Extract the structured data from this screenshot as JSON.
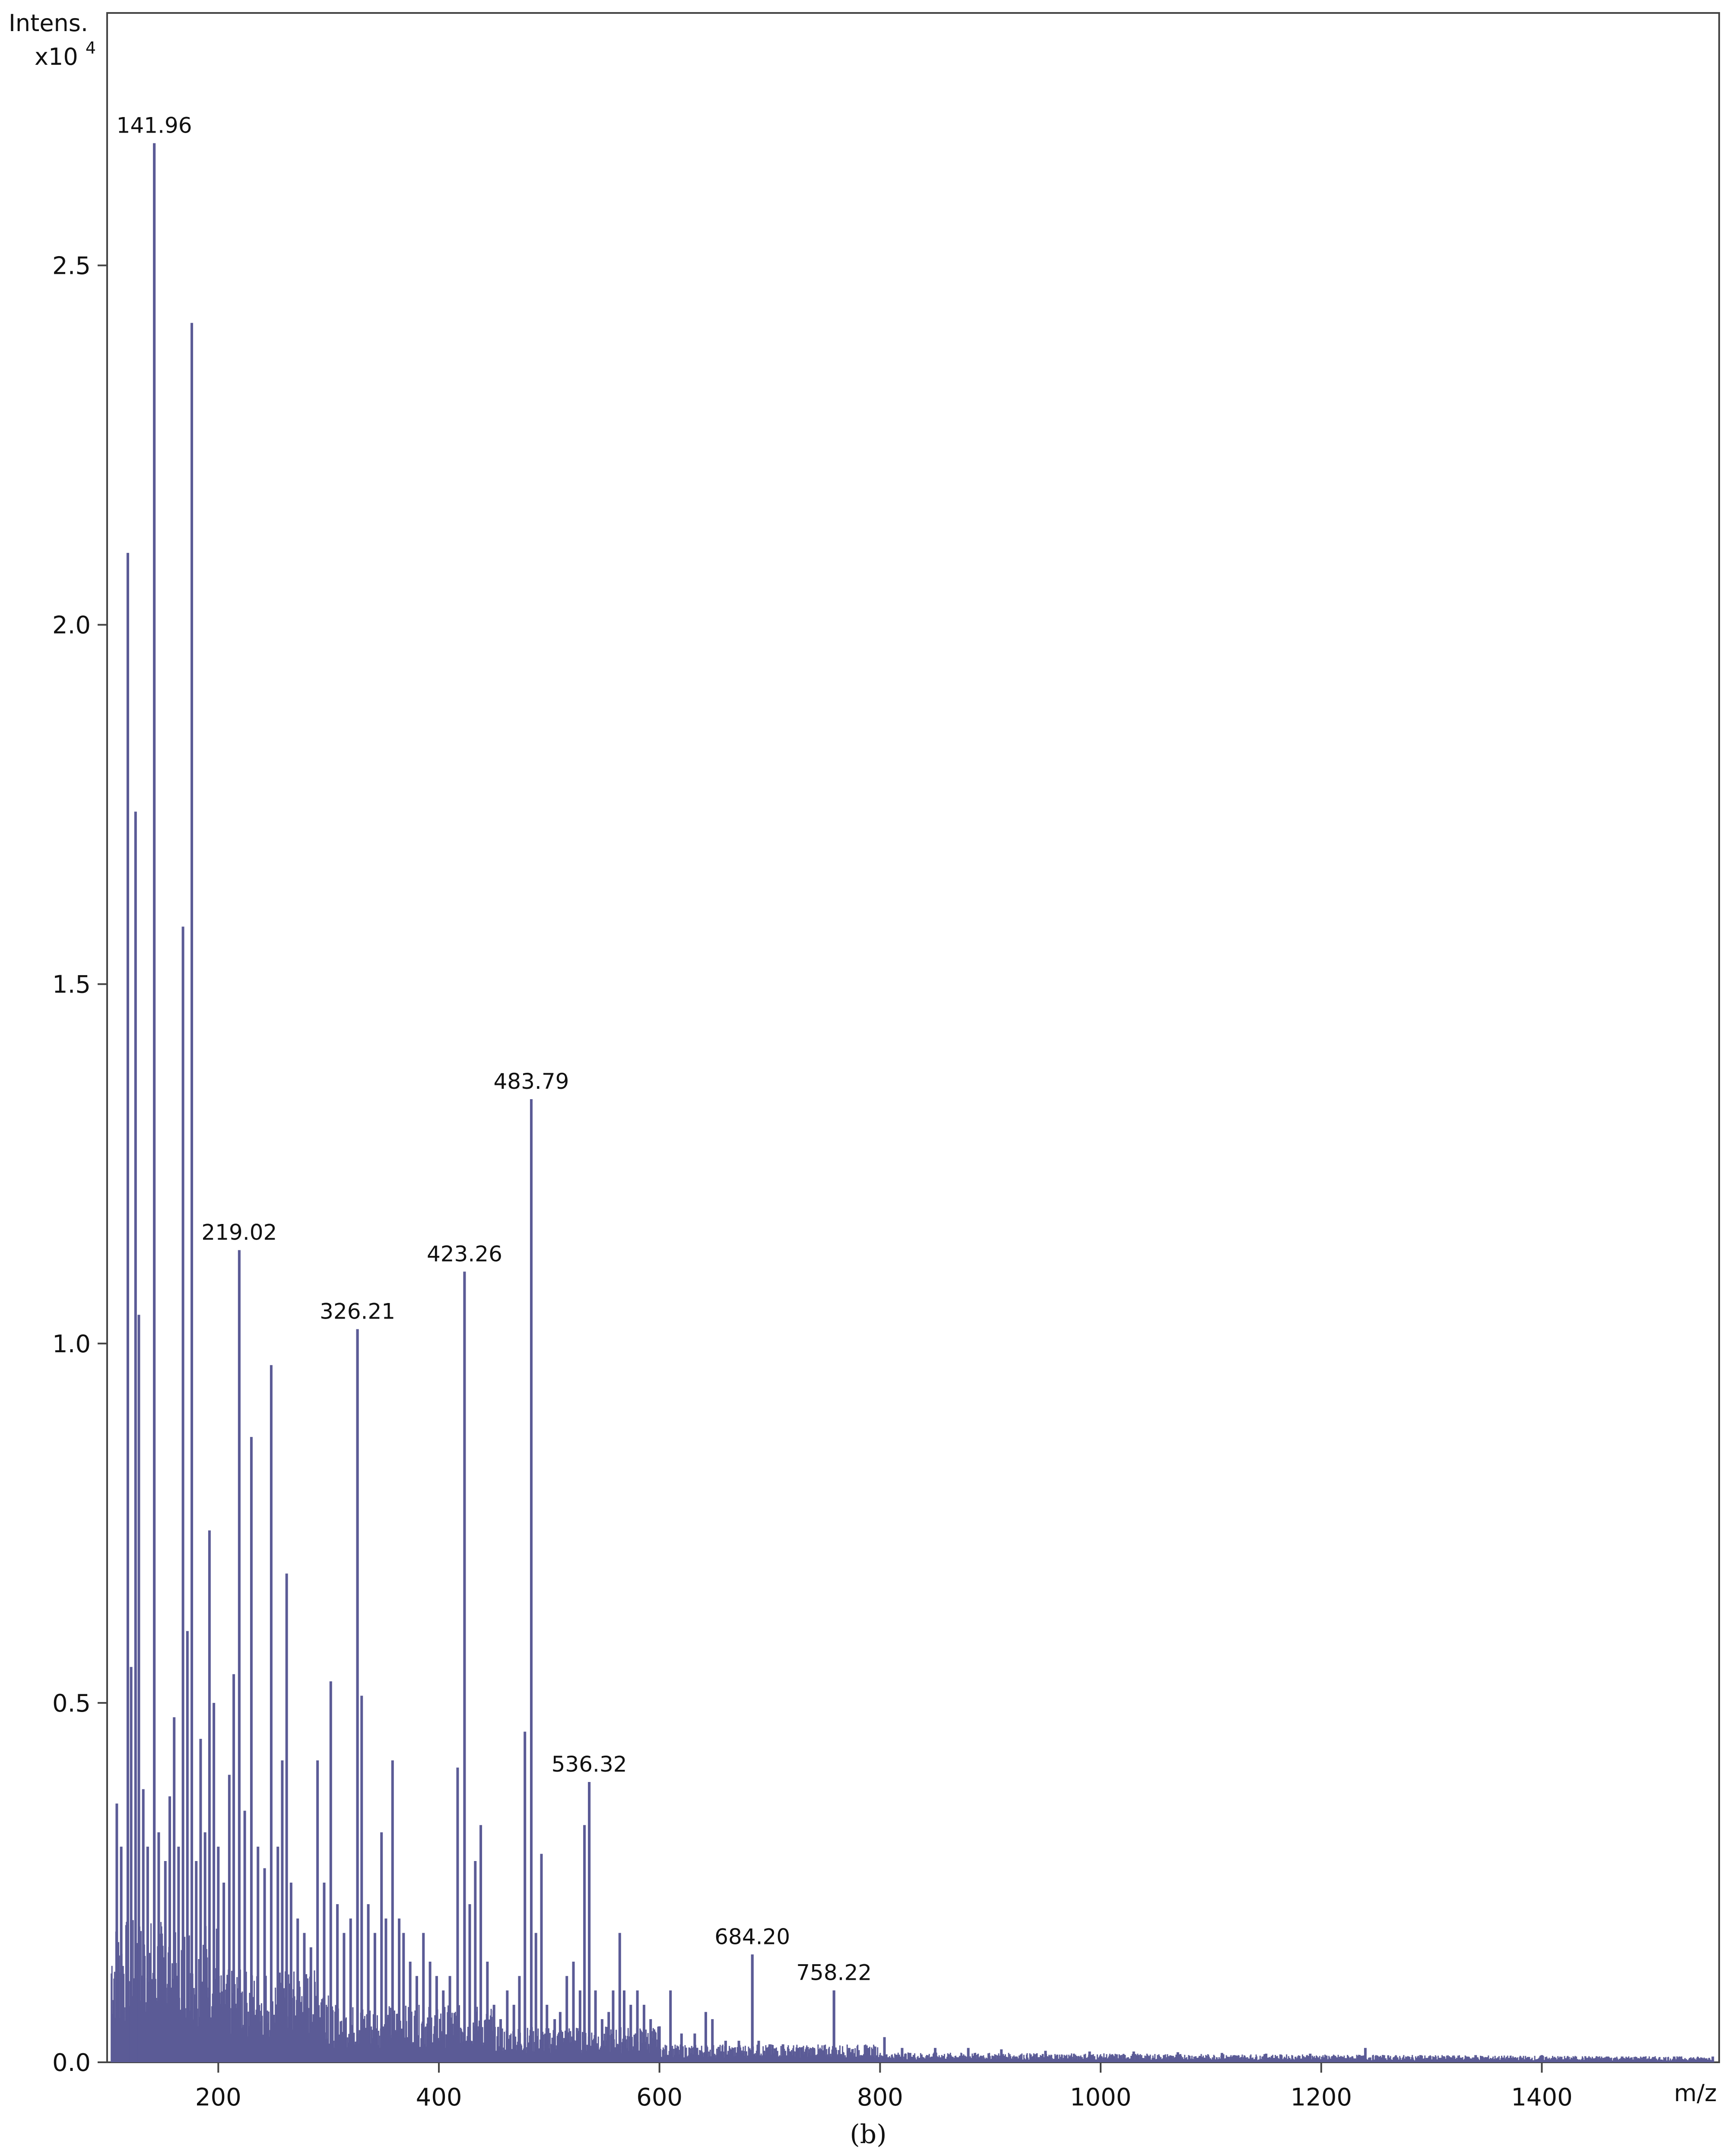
{
  "chart_data": {
    "type": "bar",
    "description_free": true,
    "ylabel_line1": "Intens.",
    "ylabel_line2_prefix": "x10",
    "ylabel_line2_exp": "4",
    "xlabel": "m/z",
    "caption": "(b)",
    "xlim": [
      100,
      1560
    ],
    "ylim": [
      0,
      2.85
    ],
    "xticks": [
      200,
      400,
      600,
      800,
      1000,
      1200,
      1400
    ],
    "xtick_labels": [
      "200",
      "400",
      "600",
      "800",
      "1000",
      "1200",
      "1400"
    ],
    "yticks": [
      0,
      0.5,
      1.0,
      1.5,
      2.0,
      2.5
    ],
    "ytick_labels": [
      "0.0",
      "0.5",
      "1.0",
      "1.5",
      "2.0",
      "2.5"
    ],
    "colors": {
      "peaks": "#5b5b96",
      "frame": "#444444"
    },
    "labeled_peaks": [
      {
        "mz": 141.96,
        "label": "141.96",
        "intensity": 2.67
      },
      {
        "mz": 219.02,
        "label": "219.02",
        "intensity": 1.13
      },
      {
        "mz": 326.21,
        "label": "326.21",
        "intensity": 1.02
      },
      {
        "mz": 423.26,
        "label": "423.26",
        "intensity": 1.1
      },
      {
        "mz": 483.79,
        "label": "483.79",
        "intensity": 1.34
      },
      {
        "mz": 536.32,
        "label": "536.32",
        "intensity": 0.39
      },
      {
        "mz": 684.2,
        "label": "684.20",
        "intensity": 0.15
      },
      {
        "mz": 758.22,
        "label": "758.22",
        "intensity": 0.1
      }
    ],
    "peaks": [
      [
        108,
        0.36
      ],
      [
        112,
        0.3
      ],
      [
        118,
        2.1
      ],
      [
        121,
        0.55
      ],
      [
        125,
        1.74
      ],
      [
        128,
        1.04
      ],
      [
        132,
        0.38
      ],
      [
        136,
        0.3
      ],
      [
        141.96,
        2.67
      ],
      [
        146,
        0.32
      ],
      [
        152,
        0.28
      ],
      [
        156,
        0.37
      ],
      [
        160,
        0.48
      ],
      [
        164,
        0.3
      ],
      [
        168,
        1.58
      ],
      [
        172,
        0.6
      ],
      [
        176,
        2.42
      ],
      [
        180,
        0.28
      ],
      [
        184,
        0.45
      ],
      [
        188,
        0.32
      ],
      [
        192,
        0.74
      ],
      [
        196,
        0.5
      ],
      [
        200,
        0.3
      ],
      [
        205,
        0.25
      ],
      [
        210,
        0.4
      ],
      [
        214,
        0.54
      ],
      [
        219.02,
        1.13
      ],
      [
        224,
        0.35
      ],
      [
        230,
        0.87
      ],
      [
        236,
        0.3
      ],
      [
        242,
        0.27
      ],
      [
        248,
        0.97
      ],
      [
        254,
        0.3
      ],
      [
        258,
        0.42
      ],
      [
        262,
        0.68
      ],
      [
        266,
        0.25
      ],
      [
        272,
        0.2
      ],
      [
        278,
        0.18
      ],
      [
        284,
        0.16
      ],
      [
        290,
        0.42
      ],
      [
        296,
        0.25
      ],
      [
        302,
        0.53
      ],
      [
        308,
        0.22
      ],
      [
        314,
        0.18
      ],
      [
        320,
        0.2
      ],
      [
        326.21,
        1.02
      ],
      [
        330,
        0.51
      ],
      [
        336,
        0.22
      ],
      [
        342,
        0.18
      ],
      [
        348,
        0.32
      ],
      [
        352,
        0.2
      ],
      [
        358,
        0.42
      ],
      [
        364,
        0.2
      ],
      [
        368,
        0.18
      ],
      [
        374,
        0.14
      ],
      [
        380,
        0.12
      ],
      [
        386,
        0.18
      ],
      [
        392,
        0.14
      ],
      [
        398,
        0.12
      ],
      [
        404,
        0.1
      ],
      [
        410,
        0.12
      ],
      [
        417,
        0.41
      ],
      [
        423.26,
        1.1
      ],
      [
        428,
        0.22
      ],
      [
        433,
        0.28
      ],
      [
        438,
        0.33
      ],
      [
        444,
        0.14
      ],
      [
        450,
        0.08
      ],
      [
        456,
        0.06
      ],
      [
        462,
        0.1
      ],
      [
        468,
        0.08
      ],
      [
        473,
        0.12
      ],
      [
        478,
        0.46
      ],
      [
        483.79,
        1.34
      ],
      [
        488,
        0.18
      ],
      [
        493,
        0.29
      ],
      [
        498,
        0.08
      ],
      [
        505,
        0.06
      ],
      [
        510,
        0.07
      ],
      [
        516,
        0.12
      ],
      [
        522,
        0.14
      ],
      [
        528,
        0.1
      ],
      [
        532,
        0.33
      ],
      [
        536.32,
        0.39
      ],
      [
        542,
        0.1
      ],
      [
        548,
        0.06
      ],
      [
        554,
        0.07
      ],
      [
        558,
        0.1
      ],
      [
        564,
        0.18
      ],
      [
        568,
        0.1
      ],
      [
        574,
        0.08
      ],
      [
        580,
        0.1
      ],
      [
        586,
        0.08
      ],
      [
        592,
        0.06
      ],
      [
        600,
        0.05
      ],
      [
        610,
        0.1
      ],
      [
        620,
        0.04
      ],
      [
        632,
        0.04
      ],
      [
        642,
        0.07
      ],
      [
        648,
        0.06
      ],
      [
        660,
        0.03
      ],
      [
        672,
        0.03
      ],
      [
        684.2,
        0.15
      ],
      [
        690,
        0.03
      ],
      [
        700,
        0.025
      ],
      [
        712,
        0.025
      ],
      [
        726,
        0.02
      ],
      [
        740,
        0.02
      ],
      [
        758.22,
        0.1
      ],
      [
        772,
        0.02
      ],
      [
        790,
        0.02
      ],
      [
        804,
        0.035
      ],
      [
        820,
        0.02
      ],
      [
        850,
        0.02
      ],
      [
        880,
        0.02
      ],
      [
        910,
        0.018
      ],
      [
        950,
        0.016
      ],
      [
        990,
        0.015
      ],
      [
        1030,
        0.015
      ],
      [
        1070,
        0.014
      ],
      [
        1110,
        0.013
      ],
      [
        1150,
        0.012
      ],
      [
        1190,
        0.012
      ],
      [
        1240,
        0.02
      ],
      [
        1290,
        0.01
      ],
      [
        1340,
        0.01
      ],
      [
        1400,
        0.01
      ],
      [
        1460,
        0.008
      ],
      [
        1520,
        0.008
      ],
      [
        1555,
        0.008
      ]
    ]
  }
}
